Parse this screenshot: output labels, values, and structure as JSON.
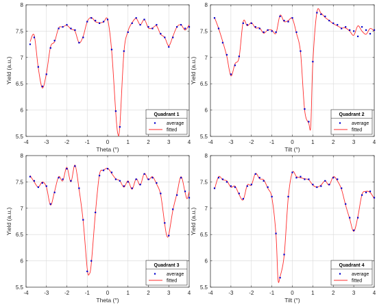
{
  "colors": {
    "average": "#0000cc",
    "fitted": "#ff2a2a",
    "grid": "#d9d9d9",
    "axis": "#262626"
  },
  "chart_data": [
    {
      "type": "line",
      "xlabel": "Theta (°)",
      "ylabel": "Yield (a.u.)",
      "xlim": [
        -4,
        4
      ],
      "ylim": [
        5.5,
        8
      ],
      "xticks": [
        "-4",
        "-3",
        "-2",
        "-1",
        "0",
        "1",
        "2",
        "3",
        "4"
      ],
      "yticks": [
        "5.5",
        "6",
        "6.5",
        "7",
        "7.5",
        "8"
      ],
      "grid": true,
      "legend": {
        "title": "Quadrant 1",
        "position": "bottom-right",
        "entries": [
          "average",
          "fitted"
        ]
      },
      "series": [
        {
          "name": "average",
          "style": "markers",
          "x": [
            -3.8,
            -3.6,
            -3.4,
            -3.2,
            -3.0,
            -2.8,
            -2.6,
            -2.4,
            -2.2,
            -2.0,
            -1.8,
            -1.6,
            -1.4,
            -1.2,
            -1.0,
            -0.8,
            -0.6,
            -0.4,
            -0.2,
            0.0,
            0.2,
            0.4,
            0.6,
            0.8,
            1.0,
            1.2,
            1.4,
            1.6,
            1.8,
            2.0,
            2.2,
            2.4,
            2.6,
            2.8,
            3.0,
            3.2,
            3.4,
            3.6,
            3.8,
            4.0
          ],
          "y": [
            7.25,
            7.38,
            6.82,
            6.45,
            6.68,
            7.18,
            7.32,
            7.55,
            7.58,
            7.62,
            7.55,
            7.52,
            7.28,
            7.38,
            7.68,
            7.75,
            7.7,
            7.65,
            7.68,
            7.72,
            7.15,
            5.98,
            5.68,
            7.12,
            7.48,
            7.65,
            7.75,
            7.62,
            7.72,
            7.58,
            7.55,
            7.62,
            7.45,
            7.38,
            7.2,
            7.38,
            7.58,
            7.62,
            7.55,
            7.58
          ]
        },
        {
          "name": "fitted",
          "style": "line",
          "x": [
            -3.8,
            -3.6,
            -3.4,
            -3.2,
            -3.0,
            -2.8,
            -2.6,
            -2.4,
            -2.2,
            -2.0,
            -1.8,
            -1.6,
            -1.4,
            -1.2,
            -1.0,
            -0.8,
            -0.6,
            -0.4,
            -0.2,
            0.0,
            0.2,
            0.4,
            0.5,
            0.6,
            0.8,
            1.0,
            1.2,
            1.4,
            1.6,
            1.8,
            2.0,
            2.2,
            2.4,
            2.6,
            2.8,
            3.0,
            3.2,
            3.4,
            3.6,
            3.8,
            4.0
          ],
          "y": [
            7.3,
            7.42,
            6.8,
            6.42,
            6.7,
            7.2,
            7.3,
            7.56,
            7.58,
            7.61,
            7.54,
            7.5,
            7.28,
            7.4,
            7.68,
            7.76,
            7.68,
            7.66,
            7.67,
            7.72,
            7.12,
            5.95,
            5.55,
            5.7,
            7.1,
            7.5,
            7.66,
            7.74,
            7.62,
            7.72,
            7.56,
            7.56,
            7.6,
            7.44,
            7.38,
            7.22,
            7.4,
            7.58,
            7.62,
            7.52,
            7.62
          ]
        }
      ]
    },
    {
      "type": "line",
      "xlabel": "Tilt (°)",
      "ylabel": "Yield (a.u.)",
      "xlim": [
        -4,
        4
      ],
      "ylim": [
        5.5,
        8
      ],
      "xticks": [
        "-4",
        "-3",
        "-2",
        "-1",
        "0",
        "1",
        "2",
        "3",
        "4"
      ],
      "yticks": [
        "5.5",
        "6",
        "6.5",
        "7",
        "7.5",
        "8"
      ],
      "grid": true,
      "legend": {
        "title": "Quadrant 2",
        "position": "bottom-right",
        "entries": [
          "average",
          "fitted"
        ]
      },
      "series": [
        {
          "name": "average",
          "style": "markers",
          "x": [
            -3.8,
            -3.6,
            -3.4,
            -3.2,
            -3.0,
            -2.8,
            -2.6,
            -2.4,
            -2.2,
            -2.0,
            -1.8,
            -1.6,
            -1.4,
            -1.2,
            -1.0,
            -0.8,
            -0.6,
            -0.4,
            -0.2,
            0.0,
            0.2,
            0.4,
            0.6,
            0.8,
            1.0,
            1.2,
            1.4,
            1.6,
            1.8,
            2.0,
            2.2,
            2.4,
            2.6,
            2.8,
            3.0,
            3.2,
            3.4,
            3.6,
            3.8,
            4.0
          ],
          "y": [
            7.75,
            7.55,
            7.28,
            7.05,
            6.68,
            6.85,
            7.02,
            7.65,
            7.62,
            7.65,
            7.58,
            7.55,
            7.48,
            7.52,
            7.5,
            7.48,
            7.78,
            7.7,
            7.68,
            7.75,
            7.48,
            7.12,
            6.02,
            5.78,
            6.92,
            7.85,
            7.82,
            7.78,
            7.7,
            7.65,
            7.62,
            7.55,
            7.58,
            7.52,
            7.5,
            7.4,
            7.58,
            7.52,
            7.45,
            7.52
          ]
        },
        {
          "name": "fitted",
          "style": "line",
          "x": [
            -3.8,
            -3.6,
            -3.4,
            -3.2,
            -3.0,
            -2.8,
            -2.6,
            -2.4,
            -2.2,
            -2.0,
            -1.8,
            -1.6,
            -1.4,
            -1.2,
            -1.0,
            -0.8,
            -0.6,
            -0.4,
            -0.2,
            0.0,
            0.2,
            0.4,
            0.6,
            0.8,
            0.9,
            1.0,
            1.2,
            1.4,
            1.6,
            1.8,
            2.0,
            2.2,
            2.4,
            2.6,
            2.8,
            3.0,
            3.2,
            3.4,
            3.6,
            3.8,
            4.0
          ],
          "y": [
            7.76,
            7.55,
            7.3,
            7.02,
            6.65,
            6.88,
            7.0,
            7.68,
            7.6,
            7.66,
            7.56,
            7.56,
            7.46,
            7.52,
            7.52,
            7.46,
            7.8,
            7.68,
            7.7,
            7.74,
            7.46,
            7.1,
            6.0,
            5.75,
            5.7,
            6.9,
            7.86,
            7.84,
            7.76,
            7.7,
            7.64,
            7.6,
            7.56,
            7.56,
            7.5,
            7.42,
            7.6,
            7.5,
            7.44,
            7.55,
            7.5
          ]
        }
      ]
    },
    {
      "type": "line",
      "xlabel": "Theta (°)",
      "ylabel": "Yield (a.u.)",
      "xlim": [
        -4,
        4
      ],
      "ylim": [
        5.5,
        8
      ],
      "xticks": [
        "-4",
        "-3",
        "-2",
        "-1",
        "0",
        "1",
        "2",
        "3",
        "4"
      ],
      "yticks": [
        "5.5",
        "6",
        "6.5",
        "7",
        "7.5",
        "8"
      ],
      "grid": true,
      "legend": {
        "title": "Quadrant 3",
        "position": "bottom-right",
        "entries": [
          "average",
          "fitted"
        ]
      },
      "series": [
        {
          "name": "average",
          "style": "markers",
          "x": [
            -3.8,
            -3.6,
            -3.4,
            -3.2,
            -3.0,
            -2.8,
            -2.6,
            -2.4,
            -2.2,
            -2.0,
            -1.8,
            -1.6,
            -1.4,
            -1.2,
            -1.0,
            -0.8,
            -0.6,
            -0.4,
            -0.2,
            0.0,
            0.2,
            0.4,
            0.6,
            0.8,
            1.0,
            1.2,
            1.4,
            1.6,
            1.8,
            2.0,
            2.2,
            2.4,
            2.6,
            2.8,
            3.0,
            3.2,
            3.4,
            3.6,
            3.8,
            4.0
          ],
          "y": [
            7.6,
            7.52,
            7.4,
            7.48,
            7.42,
            7.08,
            7.3,
            7.58,
            7.55,
            7.75,
            7.52,
            7.8,
            7.38,
            6.78,
            5.8,
            6.0,
            6.92,
            7.62,
            7.72,
            7.75,
            7.68,
            7.55,
            7.52,
            7.42,
            7.5,
            7.38,
            7.55,
            7.45,
            7.65,
            7.55,
            7.58,
            7.48,
            7.28,
            6.72,
            6.48,
            6.98,
            7.25,
            7.58,
            7.32,
            7.2
          ]
        },
        {
          "name": "fitted",
          "style": "line",
          "x": [
            -3.8,
            -3.6,
            -3.4,
            -3.2,
            -3.0,
            -2.8,
            -2.6,
            -2.4,
            -2.2,
            -2.0,
            -1.8,
            -1.6,
            -1.4,
            -1.2,
            -1.0,
            -0.9,
            -0.8,
            -0.6,
            -0.4,
            -0.2,
            0.0,
            0.2,
            0.4,
            0.6,
            0.8,
            1.0,
            1.2,
            1.4,
            1.6,
            1.8,
            2.0,
            2.2,
            2.4,
            2.6,
            2.8,
            2.9,
            3.0,
            3.2,
            3.4,
            3.6,
            3.8,
            3.9,
            4.0
          ],
          "y": [
            7.62,
            7.5,
            7.4,
            7.5,
            7.4,
            7.06,
            7.32,
            7.6,
            7.52,
            7.78,
            7.5,
            7.82,
            7.36,
            6.76,
            5.85,
            5.75,
            5.95,
            6.9,
            7.64,
            7.72,
            7.76,
            7.66,
            7.56,
            7.52,
            7.4,
            7.52,
            7.36,
            7.56,
            7.44,
            7.66,
            7.54,
            7.6,
            7.46,
            7.26,
            6.7,
            6.48,
            6.5,
            6.96,
            7.28,
            7.6,
            7.3,
            7.18,
            7.32
          ]
        }
      ]
    },
    {
      "type": "line",
      "xlabel": "Tilt (°)",
      "ylabel": "Yield (a.u.)",
      "xlim": [
        -4,
        4
      ],
      "ylim": [
        5.5,
        8
      ],
      "xticks": [
        "-4",
        "-3",
        "-2",
        "-1",
        "0",
        "1",
        "2",
        "3",
        "4"
      ],
      "yticks": [
        "5.5",
        "6",
        "6.5",
        "7",
        "7.5",
        "8"
      ],
      "grid": true,
      "legend": {
        "title": "Quadrant 4",
        "position": "bottom-right",
        "entries": [
          "average",
          "fitted"
        ]
      },
      "series": [
        {
          "name": "average",
          "style": "markers",
          "x": [
            -3.8,
            -3.6,
            -3.4,
            -3.2,
            -3.0,
            -2.8,
            -2.6,
            -2.4,
            -2.2,
            -2.0,
            -1.8,
            -1.6,
            -1.4,
            -1.2,
            -1.0,
            -0.8,
            -0.6,
            -0.4,
            -0.2,
            0.0,
            0.2,
            0.4,
            0.6,
            0.8,
            1.0,
            1.2,
            1.4,
            1.6,
            1.8,
            2.0,
            2.2,
            2.4,
            2.6,
            2.8,
            3.0,
            3.2,
            3.4,
            3.6,
            3.8,
            4.0
          ],
          "y": [
            7.38,
            7.58,
            7.55,
            7.5,
            7.42,
            7.4,
            7.28,
            7.18,
            7.42,
            7.45,
            7.65,
            7.58,
            7.52,
            7.4,
            7.22,
            6.52,
            5.68,
            6.12,
            7.22,
            7.68,
            7.58,
            7.6,
            7.55,
            7.55,
            7.45,
            7.4,
            7.42,
            7.52,
            7.45,
            7.58,
            7.55,
            7.38,
            7.08,
            6.82,
            6.58,
            6.82,
            7.25,
            7.3,
            7.32,
            7.2
          ]
        },
        {
          "name": "fitted",
          "style": "line",
          "x": [
            -3.8,
            -3.6,
            -3.4,
            -3.2,
            -3.0,
            -2.8,
            -2.6,
            -2.4,
            -2.2,
            -2.0,
            -1.8,
            -1.6,
            -1.4,
            -1.2,
            -1.0,
            -0.8,
            -0.7,
            -0.6,
            -0.4,
            -0.2,
            0.0,
            0.2,
            0.4,
            0.6,
            0.8,
            1.0,
            1.2,
            1.4,
            1.6,
            1.8,
            2.0,
            2.2,
            2.4,
            2.6,
            2.8,
            3.0,
            3.2,
            3.4,
            3.6,
            3.8,
            4.0
          ],
          "y": [
            7.36,
            7.6,
            7.54,
            7.52,
            7.4,
            7.42,
            7.26,
            7.16,
            7.44,
            7.44,
            7.66,
            7.56,
            7.54,
            7.38,
            7.2,
            6.5,
            5.65,
            5.7,
            6.1,
            7.2,
            7.68,
            7.6,
            7.58,
            7.56,
            7.54,
            7.44,
            7.4,
            7.44,
            7.52,
            7.44,
            7.6,
            7.52,
            7.36,
            7.06,
            6.8,
            6.56,
            6.84,
            7.26,
            7.32,
            7.3,
            7.18
          ]
        }
      ]
    }
  ]
}
